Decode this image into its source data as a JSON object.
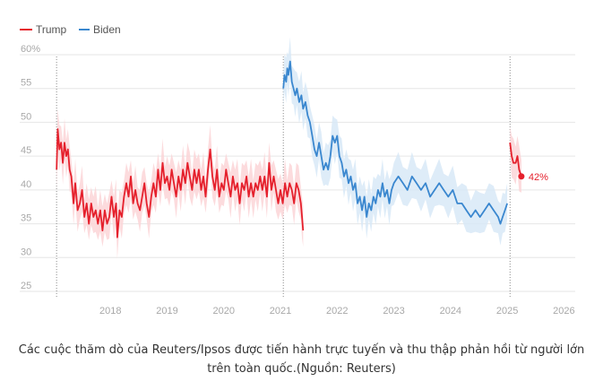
{
  "chart_data": {
    "type": "line",
    "title": "",
    "xlabel": "",
    "ylabel": "",
    "x_ticks": [
      "2018",
      "2019",
      "2020",
      "2021",
      "2022",
      "2023",
      "2024",
      "2025",
      "2026"
    ],
    "y_ticks": [
      "60%",
      "55",
      "50",
      "45",
      "40",
      "35",
      "30",
      "25"
    ],
    "xlim": [
      2017.0,
      2026.2
    ],
    "ylim": [
      25,
      60
    ],
    "grid": "horizontal",
    "legend_position": "top-left",
    "annotation": {
      "text": "42%",
      "x": 2025.25,
      "y": 42,
      "series": "Trump"
    },
    "series": [
      {
        "name": "Trump",
        "color": "#e5202c",
        "band_color": "#fbd5d7",
        "segments": [
          [
            [
              2017.05,
              43
            ],
            [
              2017.07,
              49
            ],
            [
              2017.1,
              46
            ],
            [
              2017.13,
              47
            ],
            [
              2017.16,
              44
            ],
            [
              2017.19,
              47
            ],
            [
              2017.22,
              45
            ],
            [
              2017.25,
              46
            ],
            [
              2017.28,
              43
            ],
            [
              2017.31,
              42
            ],
            [
              2017.35,
              38
            ],
            [
              2017.38,
              41
            ],
            [
              2017.42,
              37
            ],
            [
              2017.46,
              38
            ],
            [
              2017.5,
              40
            ],
            [
              2017.54,
              36
            ],
            [
              2017.58,
              38
            ],
            [
              2017.62,
              35
            ],
            [
              2017.66,
              38
            ],
            [
              2017.7,
              36
            ],
            [
              2017.74,
              37
            ],
            [
              2017.78,
              35
            ],
            [
              2017.82,
              37
            ],
            [
              2017.86,
              34
            ],
            [
              2017.9,
              37
            ],
            [
              2017.94,
              35
            ],
            [
              2017.98,
              36
            ],
            [
              2018.02,
              39
            ],
            [
              2018.06,
              36
            ],
            [
              2018.1,
              38
            ],
            [
              2018.12,
              33
            ],
            [
              2018.16,
              37
            ],
            [
              2018.2,
              36
            ],
            [
              2018.24,
              39
            ],
            [
              2018.28,
              41
            ],
            [
              2018.32,
              39
            ],
            [
              2018.36,
              42
            ],
            [
              2018.4,
              38
            ],
            [
              2018.44,
              40
            ],
            [
              2018.48,
              38
            ],
            [
              2018.52,
              37
            ],
            [
              2018.56,
              39
            ],
            [
              2018.6,
              41
            ],
            [
              2018.64,
              38
            ],
            [
              2018.68,
              36
            ],
            [
              2018.72,
              39
            ],
            [
              2018.76,
              41
            ],
            [
              2018.8,
              39
            ],
            [
              2018.84,
              43
            ],
            [
              2018.88,
              40
            ],
            [
              2018.92,
              44
            ],
            [
              2018.96,
              41
            ],
            [
              2019.0,
              42
            ],
            [
              2019.04,
              40
            ],
            [
              2019.08,
              43
            ],
            [
              2019.12,
              41
            ],
            [
              2019.16,
              39
            ],
            [
              2019.2,
              42
            ],
            [
              2019.24,
              40
            ],
            [
              2019.28,
              43
            ],
            [
              2019.32,
              41
            ],
            [
              2019.36,
              44
            ],
            [
              2019.4,
              42
            ],
            [
              2019.44,
              40
            ],
            [
              2019.48,
              43
            ],
            [
              2019.52,
              41
            ],
            [
              2019.56,
              43
            ],
            [
              2019.6,
              40
            ],
            [
              2019.64,
              42
            ],
            [
              2019.68,
              39
            ],
            [
              2019.72,
              43
            ],
            [
              2019.76,
              46
            ],
            [
              2019.8,
              42
            ],
            [
              2019.84,
              40
            ],
            [
              2019.88,
              43
            ],
            [
              2019.92,
              39
            ],
            [
              2019.96,
              41
            ],
            [
              2020.0,
              40
            ],
            [
              2020.04,
              43
            ],
            [
              2020.08,
              41
            ],
            [
              2020.12,
              39
            ],
            [
              2020.16,
              42
            ],
            [
              2020.2,
              40
            ],
            [
              2020.24,
              41
            ],
            [
              2020.28,
              38
            ],
            [
              2020.32,
              41
            ],
            [
              2020.36,
              40
            ],
            [
              2020.4,
              42
            ],
            [
              2020.44,
              39
            ],
            [
              2020.48,
              41
            ],
            [
              2020.52,
              39
            ],
            [
              2020.56,
              41
            ],
            [
              2020.6,
              40
            ],
            [
              2020.64,
              42
            ],
            [
              2020.68,
              40
            ],
            [
              2020.72,
              42
            ],
            [
              2020.76,
              39
            ],
            [
              2020.8,
              44
            ],
            [
              2020.84,
              40
            ],
            [
              2020.88,
              42
            ],
            [
              2020.92,
              40
            ],
            [
              2020.96,
              38
            ],
            [
              2021.0,
              40
            ],
            [
              2021.04,
              38
            ],
            [
              2021.08,
              41
            ],
            [
              2021.12,
              39
            ],
            [
              2021.16,
              41
            ],
            [
              2021.2,
              40
            ],
            [
              2021.24,
              38
            ],
            [
              2021.28,
              41
            ],
            [
              2021.32,
              40
            ],
            [
              2021.36,
              38
            ],
            [
              2021.38,
              36
            ],
            [
              2021.4,
              34
            ]
          ],
          [
            [
              2025.05,
              47
            ],
            [
              2025.08,
              45
            ],
            [
              2025.11,
              44
            ],
            [
              2025.15,
              44
            ],
            [
              2025.18,
              45
            ],
            [
              2025.21,
              43
            ],
            [
              2025.25,
              42
            ]
          ]
        ]
      },
      {
        "name": "Biden",
        "color": "#3a87cf",
        "band_color": "#d8e9f7",
        "segments": [
          [
            [
              2021.05,
              55
            ],
            [
              2021.07,
              57
            ],
            [
              2021.1,
              56
            ],
            [
              2021.12,
              58
            ],
            [
              2021.14,
              57
            ],
            [
              2021.17,
              59
            ],
            [
              2021.2,
              56
            ],
            [
              2021.23,
              55
            ],
            [
              2021.26,
              54
            ],
            [
              2021.29,
              55
            ],
            [
              2021.33,
              53
            ],
            [
              2021.37,
              54
            ],
            [
              2021.4,
              52
            ],
            [
              2021.44,
              53
            ],
            [
              2021.48,
              51
            ],
            [
              2021.52,
              50
            ],
            [
              2021.56,
              48
            ],
            [
              2021.6,
              46
            ],
            [
              2021.64,
              45
            ],
            [
              2021.68,
              47
            ],
            [
              2021.72,
              45
            ],
            [
              2021.76,
              43
            ],
            [
              2021.8,
              44
            ],
            [
              2021.84,
              43
            ],
            [
              2021.88,
              45
            ],
            [
              2021.92,
              48
            ],
            [
              2021.96,
              47
            ],
            [
              2022.0,
              48
            ],
            [
              2022.04,
              45
            ],
            [
              2022.08,
              44
            ],
            [
              2022.12,
              42
            ],
            [
              2022.16,
              43
            ],
            [
              2022.2,
              41
            ],
            [
              2022.24,
              42
            ],
            [
              2022.28,
              40
            ],
            [
              2022.32,
              41
            ],
            [
              2022.36,
              38
            ],
            [
              2022.4,
              39
            ],
            [
              2022.44,
              37
            ],
            [
              2022.48,
              39
            ],
            [
              2022.52,
              36
            ],
            [
              2022.56,
              38
            ],
            [
              2022.6,
              37
            ],
            [
              2022.64,
              39
            ],
            [
              2022.68,
              38
            ],
            [
              2022.72,
              40
            ],
            [
              2022.76,
              39
            ],
            [
              2022.8,
              41
            ],
            [
              2022.84,
              39
            ],
            [
              2022.88,
              40
            ],
            [
              2022.92,
              38
            ],
            [
              2022.96,
              40
            ],
            [
              2023.0,
              41
            ],
            [
              2023.08,
              42
            ],
            [
              2023.16,
              41
            ],
            [
              2023.24,
              40
            ],
            [
              2023.32,
              42
            ],
            [
              2023.4,
              41
            ],
            [
              2023.48,
              40
            ],
            [
              2023.56,
              41
            ],
            [
              2023.64,
              39
            ],
            [
              2023.72,
              40
            ],
            [
              2023.8,
              41
            ],
            [
              2023.88,
              40
            ],
            [
              2023.96,
              39
            ],
            [
              2024.04,
              40
            ],
            [
              2024.12,
              38
            ],
            [
              2024.2,
              38
            ],
            [
              2024.28,
              37
            ],
            [
              2024.36,
              36
            ],
            [
              2024.44,
              37
            ],
            [
              2024.52,
              36
            ],
            [
              2024.6,
              37
            ],
            [
              2024.68,
              38
            ],
            [
              2024.76,
              37
            ],
            [
              2024.84,
              36
            ],
            [
              2024.88,
              35
            ],
            [
              2024.92,
              36
            ],
            [
              2024.96,
              37
            ],
            [
              2025.0,
              38
            ]
          ]
        ]
      }
    ]
  },
  "caption": "Các cuộc thăm dò của Reuters/Ipsos được tiến hành trực tuyến và thu thập phản hồi từ người lớn trên toàn quốc.(Nguồn: Reuters)"
}
